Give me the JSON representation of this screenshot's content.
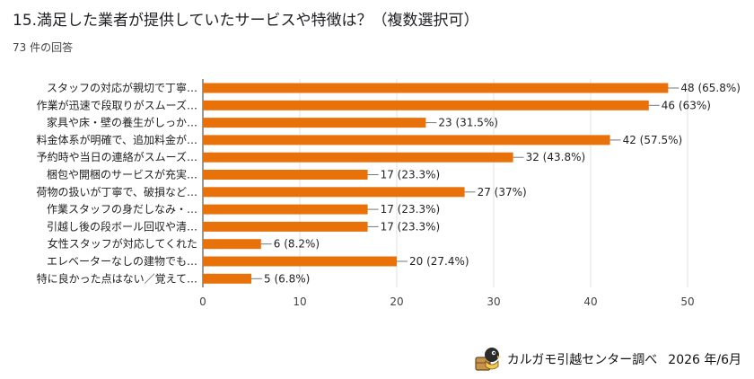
{
  "header": {
    "title": "15.満足した業者が提供していたサービスや特徴は？（複数選択可）",
    "responses": "73 件の回答"
  },
  "footer": {
    "credit": "カルガモ引越センター調べ",
    "date": "2026 年/6月",
    "logo_icon": "duck-mascot-logo"
  },
  "colors": {
    "bar": "#e8710a",
    "grid": "#e0e0e0",
    "axis": "#333333"
  },
  "chart_data": {
    "type": "bar",
    "orientation": "horizontal",
    "title": "",
    "xlabel": "",
    "ylabel": "",
    "xlim": [
      0,
      50
    ],
    "ticks": [
      0,
      10,
      20,
      30,
      40,
      50
    ],
    "grid": true,
    "legend": "none",
    "categories": [
      "スタッフの対応が親切で丁寧…",
      "作業が迅速で段取りがスムーズ…",
      "家具や床・壁の養生がしっか…",
      "料金体系が明確で、追加料金が…",
      "予約時や当日の連絡がスムーズ…",
      "梱包や開梱のサービスが充実…",
      "荷物の扱いが丁寧で、破損など…",
      "作業スタッフの身だしなみ・…",
      "引越し後の段ボール回収や清…",
      "女性スタッフが対応してくれた",
      "エレベーターなしの建物でも…",
      "特に良かった点はない／覚えて…"
    ],
    "values": [
      48,
      46,
      23,
      42,
      32,
      17,
      27,
      17,
      17,
      6,
      20,
      5
    ],
    "value_labels": [
      "48 (65.8%)",
      "46 (63%)",
      "23 (31.5%)",
      "42 (57.5%)",
      "32 (43.8%)",
      "17 (23.3%)",
      "27 (37%)",
      "17 (23.3%)",
      "17 (23.3%)",
      "6 (8.2%)",
      "20 (27.4%)",
      "5 (6.8%)"
    ]
  }
}
